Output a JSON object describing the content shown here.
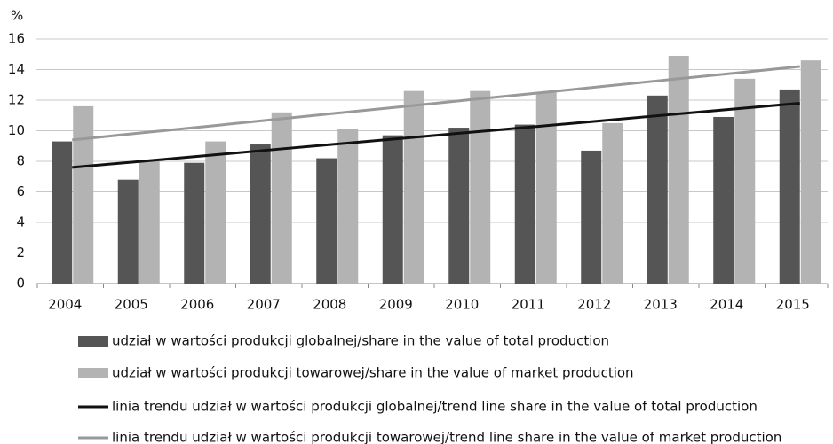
{
  "chart_data": {
    "type": "bar",
    "y_unit": "%",
    "categories": [
      "2004",
      "2005",
      "2006",
      "2007",
      "2008",
      "2009",
      "2010",
      "2011",
      "2012",
      "2013",
      "2014",
      "2015"
    ],
    "series": [
      {
        "name": "udział w wartości produkcji globalnej/share in the value of total production",
        "type": "bar",
        "color": "#555555",
        "values": [
          9.3,
          6.8,
          7.9,
          9.1,
          8.2,
          9.7,
          10.2,
          10.4,
          8.7,
          12.3,
          10.9,
          12.7
        ]
      },
      {
        "name": "udział w wartości produkcji towarowej/share in the value of market production",
        "type": "bar",
        "color": "#b3b3b3",
        "values": [
          11.6,
          8.0,
          9.3,
          11.2,
          10.1,
          12.6,
          12.6,
          12.5,
          10.5,
          14.9,
          13.4,
          14.6
        ]
      },
      {
        "name": "linia trendu udział w wartości produkcji globalnej/trend line share in the value of total production",
        "type": "line",
        "color": "#111111",
        "values": [
          7.6,
          7.98,
          8.36,
          8.75,
          9.13,
          9.51,
          9.89,
          10.27,
          10.65,
          11.04,
          11.42,
          11.8
        ]
      },
      {
        "name": "linia trendu udział w wartości produkcji towarowej/trend line share in the value of market production",
        "type": "line",
        "color": "#999999",
        "values": [
          9.4,
          9.84,
          10.27,
          10.71,
          11.15,
          11.58,
          12.02,
          12.45,
          12.89,
          13.33,
          13.76,
          14.2
        ]
      }
    ],
    "ylim": [
      0,
      16
    ],
    "yticks": [
      0,
      2,
      4,
      6,
      8,
      10,
      12,
      14,
      16
    ],
    "grid": true,
    "legend": "bottom"
  }
}
